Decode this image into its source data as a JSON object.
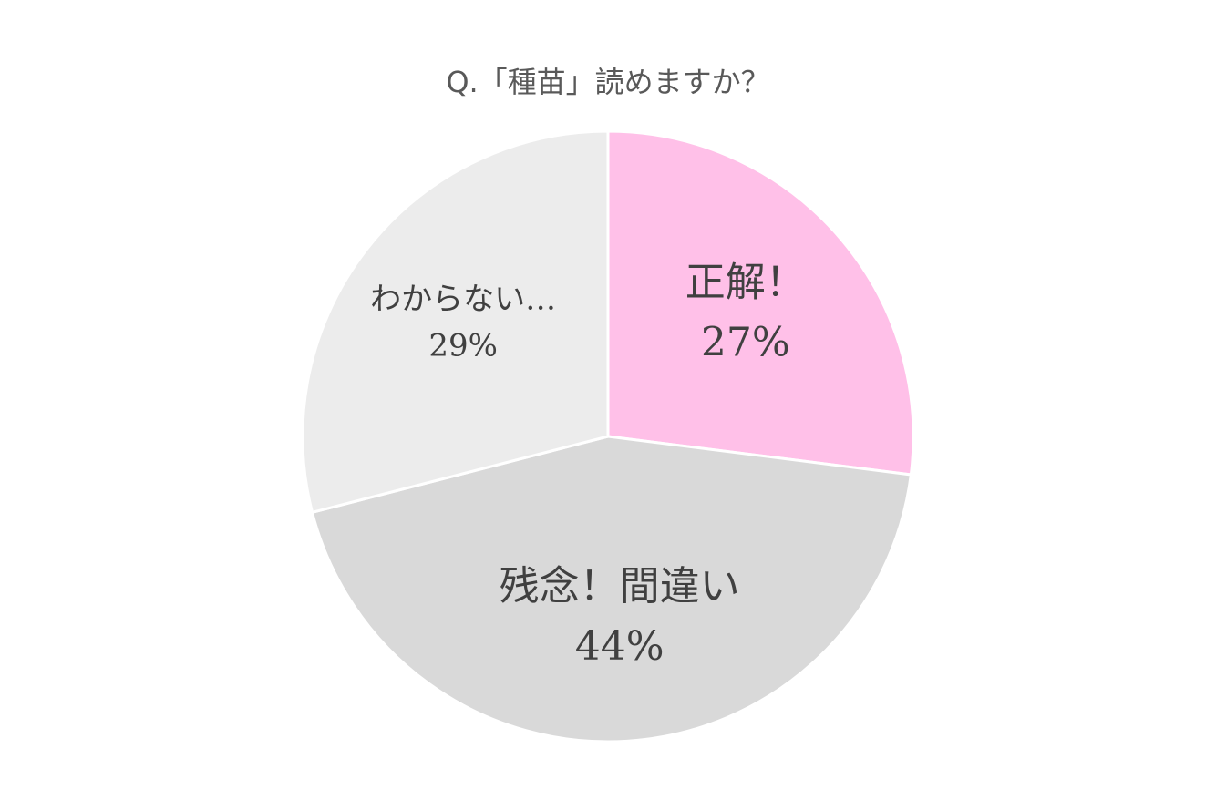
{
  "chart_data": {
    "type": "pie",
    "title": "Q.「種苗」読めますか？",
    "categories": [
      "正解！",
      "残念！間違い",
      "わからない…"
    ],
    "values": [
      27,
      44,
      29
    ],
    "value_labels": [
      "27%",
      "44%",
      "29%"
    ],
    "colors": [
      "#ffc0e8",
      "#d9d9d9",
      "#ececec"
    ]
  }
}
